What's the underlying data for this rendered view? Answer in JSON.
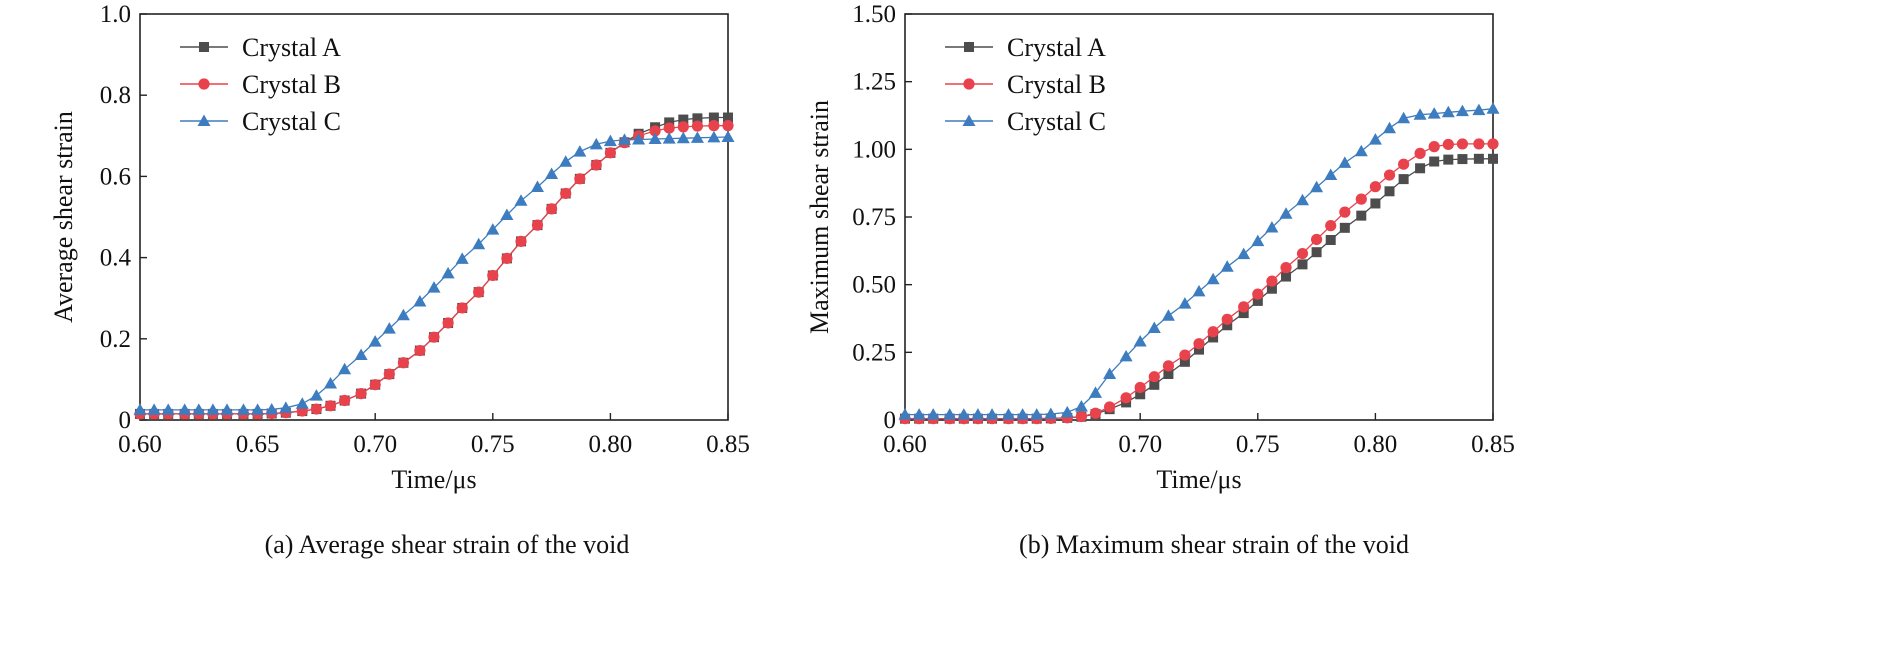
{
  "chart_data": [
    {
      "type": "line",
      "caption": "(a) Average shear strain of the void",
      "xlabel": "Time/μs",
      "ylabel": "Average shear strain",
      "xlim": [
        0.6,
        0.85
      ],
      "ylim": [
        0,
        1.0
      ],
      "xticks": [
        0.6,
        0.65,
        0.7,
        0.75,
        0.8,
        0.85
      ],
      "xtick_labels": [
        "0.60",
        "0.65",
        "0.70",
        "0.75",
        "0.80",
        "0.85"
      ],
      "yticks": [
        0,
        0.2,
        0.4,
        0.6,
        0.8,
        1.0
      ],
      "ytick_labels": [
        "0",
        "0.2",
        "0.4",
        "0.6",
        "0.8",
        "1.0"
      ],
      "legend_position": "top-left",
      "x": [
        0.6,
        0.606,
        0.612,
        0.619,
        0.625,
        0.631,
        0.637,
        0.644,
        0.65,
        0.656,
        0.662,
        0.669,
        0.675,
        0.681,
        0.687,
        0.694,
        0.7,
        0.706,
        0.712,
        0.719,
        0.725,
        0.731,
        0.737,
        0.744,
        0.75,
        0.756,
        0.762,
        0.769,
        0.775,
        0.781,
        0.787,
        0.794,
        0.8,
        0.806,
        0.812,
        0.819,
        0.825,
        0.831,
        0.837,
        0.844,
        0.85
      ],
      "series": [
        {
          "name": "Crystal A",
          "color": "#4d4d4d",
          "marker": "square",
          "values": [
            0.015,
            0.015,
            0.015,
            0.015,
            0.015,
            0.015,
            0.015,
            0.015,
            0.015,
            0.016,
            0.018,
            0.022,
            0.027,
            0.035,
            0.048,
            0.065,
            0.087,
            0.113,
            0.141,
            0.171,
            0.204,
            0.239,
            0.276,
            0.315,
            0.356,
            0.398,
            0.44,
            0.48,
            0.52,
            0.558,
            0.594,
            0.628,
            0.658,
            0.684,
            0.705,
            0.721,
            0.733,
            0.74,
            0.743,
            0.745,
            0.745
          ]
        },
        {
          "name": "Crystal B",
          "color": "#e8424c",
          "marker": "circle",
          "values": [
            0.015,
            0.015,
            0.015,
            0.015,
            0.015,
            0.015,
            0.015,
            0.015,
            0.015,
            0.016,
            0.018,
            0.022,
            0.027,
            0.035,
            0.048,
            0.065,
            0.087,
            0.113,
            0.141,
            0.171,
            0.204,
            0.239,
            0.276,
            0.315,
            0.356,
            0.398,
            0.44,
            0.48,
            0.52,
            0.558,
            0.594,
            0.628,
            0.658,
            0.683,
            0.7,
            0.712,
            0.719,
            0.722,
            0.724,
            0.725,
            0.725
          ]
        },
        {
          "name": "Crystal C",
          "color": "#3d7dbf",
          "marker": "triangle",
          "values": [
            0.025,
            0.025,
            0.025,
            0.025,
            0.025,
            0.025,
            0.025,
            0.025,
            0.025,
            0.026,
            0.03,
            0.04,
            0.06,
            0.09,
            0.125,
            0.16,
            0.193,
            0.225,
            0.258,
            0.292,
            0.326,
            0.361,
            0.397,
            0.433,
            0.469,
            0.505,
            0.54,
            0.574,
            0.606,
            0.636,
            0.661,
            0.679,
            0.687,
            0.69,
            0.691,
            0.692,
            0.693,
            0.694,
            0.695,
            0.696,
            0.697
          ]
        }
      ]
    },
    {
      "type": "line",
      "caption": "(b) Maximum shear strain of the void",
      "xlabel": "Time/μs",
      "ylabel": "Maximum shear strain",
      "xlim": [
        0.6,
        0.85
      ],
      "ylim": [
        0,
        1.5
      ],
      "xticks": [
        0.6,
        0.65,
        0.7,
        0.75,
        0.8,
        0.85
      ],
      "xtick_labels": [
        "0.60",
        "0.65",
        "0.70",
        "0.75",
        "0.80",
        "0.85"
      ],
      "yticks": [
        0,
        0.25,
        0.5,
        0.75,
        1.0,
        1.25,
        1.5
      ],
      "ytick_labels": [
        "0",
        "0.25",
        "0.50",
        "0.75",
        "1.00",
        "1.25",
        "1.50"
      ],
      "legend_position": "top-left",
      "x": [
        0.6,
        0.606,
        0.612,
        0.619,
        0.625,
        0.631,
        0.637,
        0.644,
        0.65,
        0.656,
        0.662,
        0.669,
        0.675,
        0.681,
        0.687,
        0.694,
        0.7,
        0.706,
        0.712,
        0.719,
        0.725,
        0.731,
        0.737,
        0.744,
        0.75,
        0.756,
        0.762,
        0.769,
        0.775,
        0.781,
        0.787,
        0.794,
        0.8,
        0.806,
        0.812,
        0.819,
        0.825,
        0.831,
        0.837,
        0.844,
        0.85
      ],
      "series": [
        {
          "name": "Crystal A",
          "color": "#4d4d4d",
          "marker": "square",
          "values": [
            0.005,
            0.005,
            0.005,
            0.005,
            0.005,
            0.005,
            0.005,
            0.005,
            0.005,
            0.005,
            0.006,
            0.008,
            0.012,
            0.022,
            0.04,
            0.065,
            0.095,
            0.13,
            0.17,
            0.215,
            0.26,
            0.305,
            0.35,
            0.395,
            0.44,
            0.485,
            0.53,
            0.575,
            0.62,
            0.665,
            0.71,
            0.755,
            0.8,
            0.845,
            0.89,
            0.93,
            0.955,
            0.962,
            0.964,
            0.965,
            0.965
          ]
        },
        {
          "name": "Crystal B",
          "color": "#e8424c",
          "marker": "circle",
          "values": [
            0.005,
            0.005,
            0.005,
            0.005,
            0.005,
            0.005,
            0.005,
            0.005,
            0.005,
            0.005,
            0.006,
            0.008,
            0.013,
            0.025,
            0.048,
            0.082,
            0.12,
            0.16,
            0.2,
            0.24,
            0.282,
            0.326,
            0.372,
            0.418,
            0.465,
            0.513,
            0.563,
            0.615,
            0.667,
            0.718,
            0.768,
            0.816,
            0.862,
            0.905,
            0.945,
            0.985,
            1.01,
            1.018,
            1.02,
            1.02,
            1.02
          ]
        },
        {
          "name": "Crystal C",
          "color": "#3d7dbf",
          "marker": "triangle",
          "values": [
            0.02,
            0.02,
            0.02,
            0.02,
            0.02,
            0.02,
            0.02,
            0.02,
            0.02,
            0.02,
            0.022,
            0.028,
            0.05,
            0.1,
            0.17,
            0.235,
            0.29,
            0.34,
            0.385,
            0.43,
            0.475,
            0.52,
            0.566,
            0.613,
            0.661,
            0.711,
            0.762,
            0.812,
            0.86,
            0.905,
            0.95,
            0.993,
            1.036,
            1.078,
            1.115,
            1.128,
            1.132,
            1.137,
            1.141,
            1.145,
            1.15
          ]
        }
      ]
    }
  ]
}
